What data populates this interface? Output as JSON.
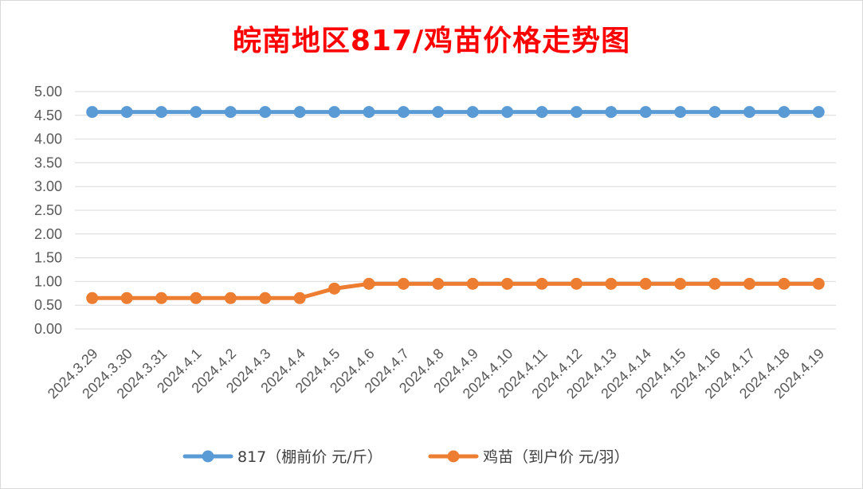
{
  "chart_data": {
    "type": "line",
    "title": "皖南地区817/鸡苗价格走势图",
    "categories": [
      "2024.3.29",
      "2024.3.30",
      "2024.3.31",
      "2024.4.1",
      "2024.4.2",
      "2024.4.3",
      "2024.4.4",
      "2024.4.5",
      "2024.4.6",
      "2024.4.7",
      "2024.4.8",
      "2024.4.9",
      "2024.4.10",
      "2024.4.11",
      "2024.4.12",
      "2024.4.13",
      "2024.4.14",
      "2024.4.15",
      "2024.4.16",
      "2024.4.17",
      "2024.4.18",
      "2024.4.19"
    ],
    "series": [
      {
        "name": "817（棚前价 元/斤）",
        "color": "#5b9bd5",
        "values": [
          4.57,
          4.57,
          4.57,
          4.57,
          4.57,
          4.57,
          4.57,
          4.57,
          4.57,
          4.57,
          4.57,
          4.57,
          4.57,
          4.57,
          4.57,
          4.57,
          4.57,
          4.57,
          4.57,
          4.57,
          4.57,
          4.57
        ]
      },
      {
        "name": "鸡苗（到户价 元/羽）",
        "color": "#ed7d31",
        "values": [
          0.65,
          0.65,
          0.65,
          0.65,
          0.65,
          0.65,
          0.65,
          0.85,
          0.95,
          0.95,
          0.95,
          0.95,
          0.95,
          0.95,
          0.95,
          0.95,
          0.95,
          0.95,
          0.95,
          0.95,
          0.95,
          0.95
        ]
      }
    ],
    "yticks": [
      "5.00",
      "4.50",
      "4.00",
      "3.50",
      "3.00",
      "2.50",
      "2.00",
      "1.50",
      "1.00",
      "0.50",
      "0.00"
    ],
    "ylim": [
      0,
      5
    ],
    "xlabel": "",
    "ylabel": "",
    "grid": true,
    "legend": "bottom",
    "title_color": "#ff0000"
  }
}
